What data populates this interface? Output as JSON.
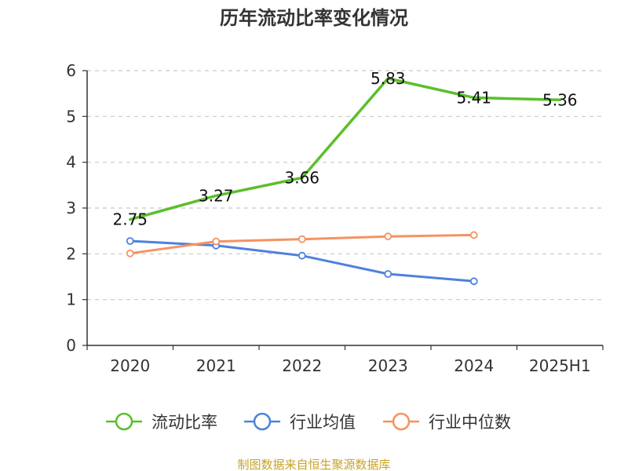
{
  "chart_data": {
    "type": "line",
    "title": "历年流动比率变化情况",
    "categories": [
      "2020",
      "2021",
      "2022",
      "2023",
      "2024",
      "2025H1"
    ],
    "ylim": [
      0,
      6
    ],
    "yticks": [
      "0",
      "1",
      "2",
      "3",
      "4",
      "5",
      "6"
    ],
    "grid": true,
    "legend_position": "bottom",
    "series": [
      {
        "name": "流动比率",
        "color": "#5bbf2b",
        "values": [
          2.75,
          3.27,
          3.66,
          5.83,
          5.41,
          5.36
        ],
        "labels": [
          "2.75",
          "3.27",
          "3.66",
          "5.83",
          "5.41",
          "5.36"
        ]
      },
      {
        "name": "行业均值",
        "color": "#4e81dc",
        "values": [
          2.28,
          2.18,
          1.96,
          1.56,
          1.4,
          null
        ]
      },
      {
        "name": "行业中位数",
        "color": "#f59361",
        "values": [
          2.01,
          2.27,
          2.32,
          2.38,
          2.41,
          null
        ]
      }
    ]
  },
  "source": "制图数据来自恒生聚源数据库"
}
